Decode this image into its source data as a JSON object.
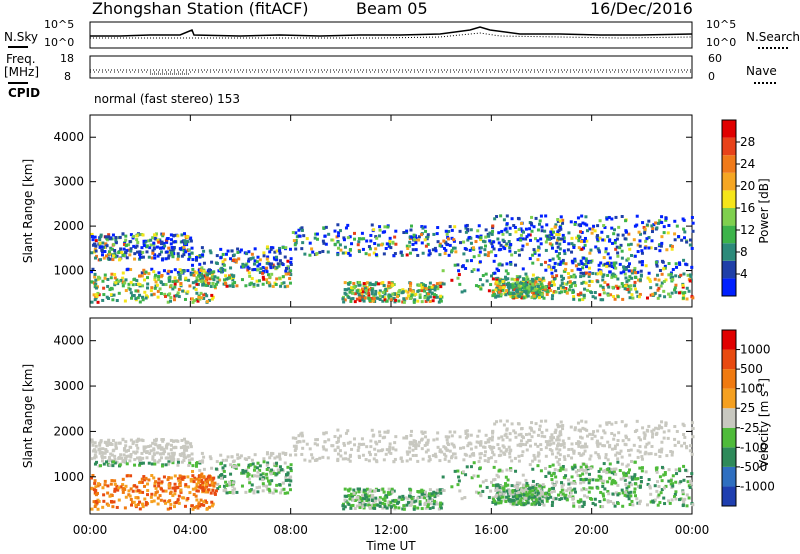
{
  "header": {
    "station": "Zhongshan Station (fitACF)",
    "beam": "Beam 05",
    "date": "16/Dec/2016"
  },
  "labels": {
    "nsky": "N.Sky",
    "nsearch": "N.Search",
    "freq_line1": "Freq.",
    "freq_line2": "[MHz]",
    "nave": "Nave",
    "cpid": "CPID",
    "cpid_value": "normal (fast stereo) 153",
    "tick_1e5_left": "10^5",
    "tick_1e0_left": "10^0",
    "tick_1e5_right": "10^5",
    "tick_1e0_right": "10^0",
    "freq_top": "18",
    "freq_bottom": "8",
    "nave_top": "60",
    "nave_bottom": "0"
  },
  "chart_data": [
    {
      "type": "heatmap",
      "name": "power",
      "ylabel": "Slant Range [km]",
      "ylim": [
        180,
        4500
      ],
      "yticks": [
        "1000",
        "2000",
        "3000",
        "4000"
      ],
      "xlim": [
        0,
        24
      ],
      "colorbar": {
        "label": "Power [dB]",
        "ticks": [
          "28",
          "24",
          "20",
          "16",
          "12",
          "8",
          "4"
        ],
        "colors": [
          "#0020ff",
          "#1f3fa8",
          "#2c8a7a",
          "#3cb34a",
          "#7fd04e",
          "#f5e51a",
          "#f5a623",
          "#f07a1a",
          "#e8421a",
          "#e00000"
        ]
      }
    },
    {
      "type": "heatmap",
      "name": "velocity",
      "ylabel": "Slant Range [km]",
      "ylim": [
        180,
        4500
      ],
      "yticks": [
        "1000",
        "2000",
        "3000",
        "4000"
      ],
      "xlabel": "Time UT",
      "xlim": [
        0,
        24
      ],
      "xticks": [
        "00:00",
        "04:00",
        "08:00",
        "12:00",
        "16:00",
        "20:00",
        "00:00"
      ],
      "colorbar": {
        "label": "Velocity [m s",
        "label_sup": "-1",
        "label_close": "]",
        "ticks": [
          "1000",
          "500",
          "100",
          "25",
          "-25",
          "-100",
          "-500",
          "-1000"
        ],
        "colors": [
          "#1f3fb0",
          "#2f6fc0",
          "#2e8a5a",
          "#4fbb3a",
          "#c8c8c0",
          "#f5a020",
          "#f07a10",
          "#e84a10",
          "#e00000"
        ]
      }
    }
  ]
}
